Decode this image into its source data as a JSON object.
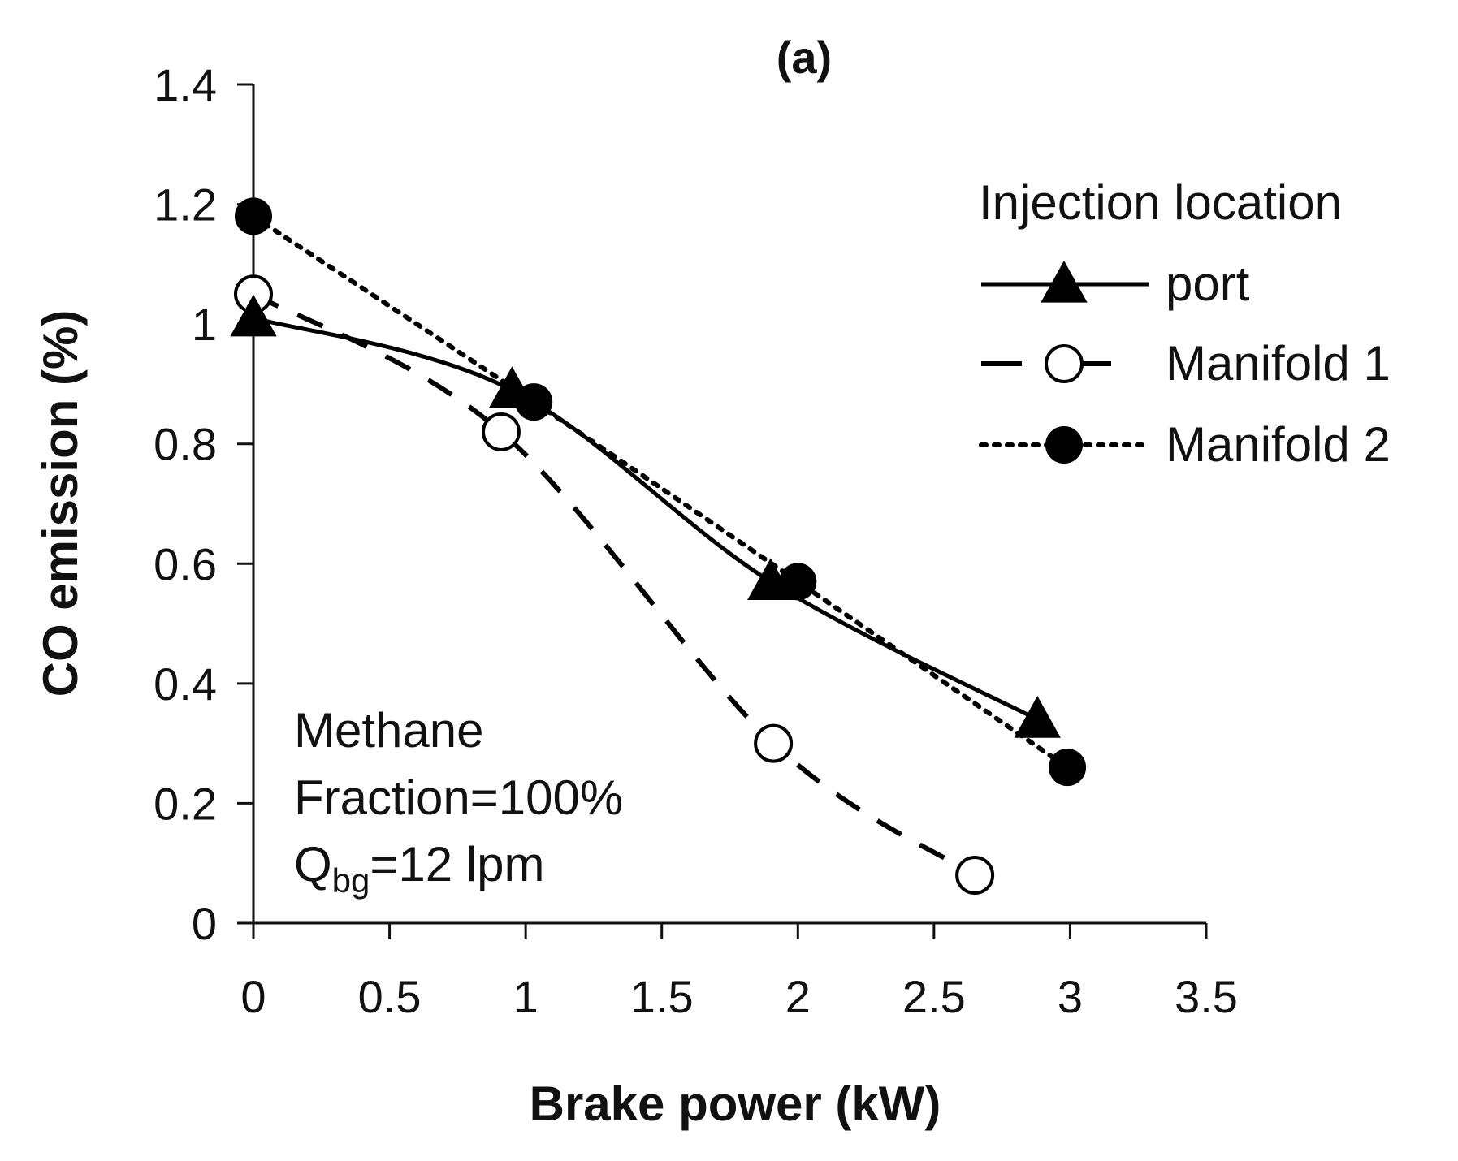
{
  "chart_data": {
    "type": "line",
    "title": "(a)",
    "xlabel": "Brake power (kW)",
    "ylabel": "CO emission (%)",
    "xlim": [
      0,
      3.5
    ],
    "ylim": [
      0,
      1.4
    ],
    "x_ticks": [
      "0",
      "0.5",
      "1",
      "1.5",
      "2",
      "2.5",
      "3",
      "3.5"
    ],
    "y_ticks": [
      "0",
      "0.2",
      "0.4",
      "0.6",
      "0.8",
      "1",
      "1.2",
      "1.4"
    ],
    "grid": false,
    "legend": {
      "title": "Injection location",
      "placement": "top-right"
    },
    "series": [
      {
        "name": "port",
        "line_style": "solid",
        "marker": "filled-triangle",
        "color": "#000000",
        "points": [
          [
            0,
            1.01
          ],
          [
            0.95,
            0.89
          ],
          [
            1.9,
            0.57
          ],
          [
            2.88,
            0.34
          ]
        ]
      },
      {
        "name": "Manifold 1",
        "line_style": "dashed",
        "marker": "open-circle",
        "color": "#000000",
        "points": [
          [
            0,
            1.05
          ],
          [
            0.91,
            0.82
          ],
          [
            1.91,
            0.3
          ],
          [
            2.65,
            0.08
          ]
        ]
      },
      {
        "name": "Manifold 2",
        "line_style": "dotted",
        "marker": "filled-circle",
        "color": "#000000",
        "points": [
          [
            0,
            1.18
          ],
          [
            1.03,
            0.87
          ],
          [
            2.0,
            0.57
          ],
          [
            2.99,
            0.26
          ]
        ]
      }
    ],
    "annotation": {
      "line1": "Methane",
      "line2": "Fraction=100%",
      "line3_main": "Q",
      "line3_sub": "bg",
      "line3_rest": "=12 lpm"
    }
  }
}
